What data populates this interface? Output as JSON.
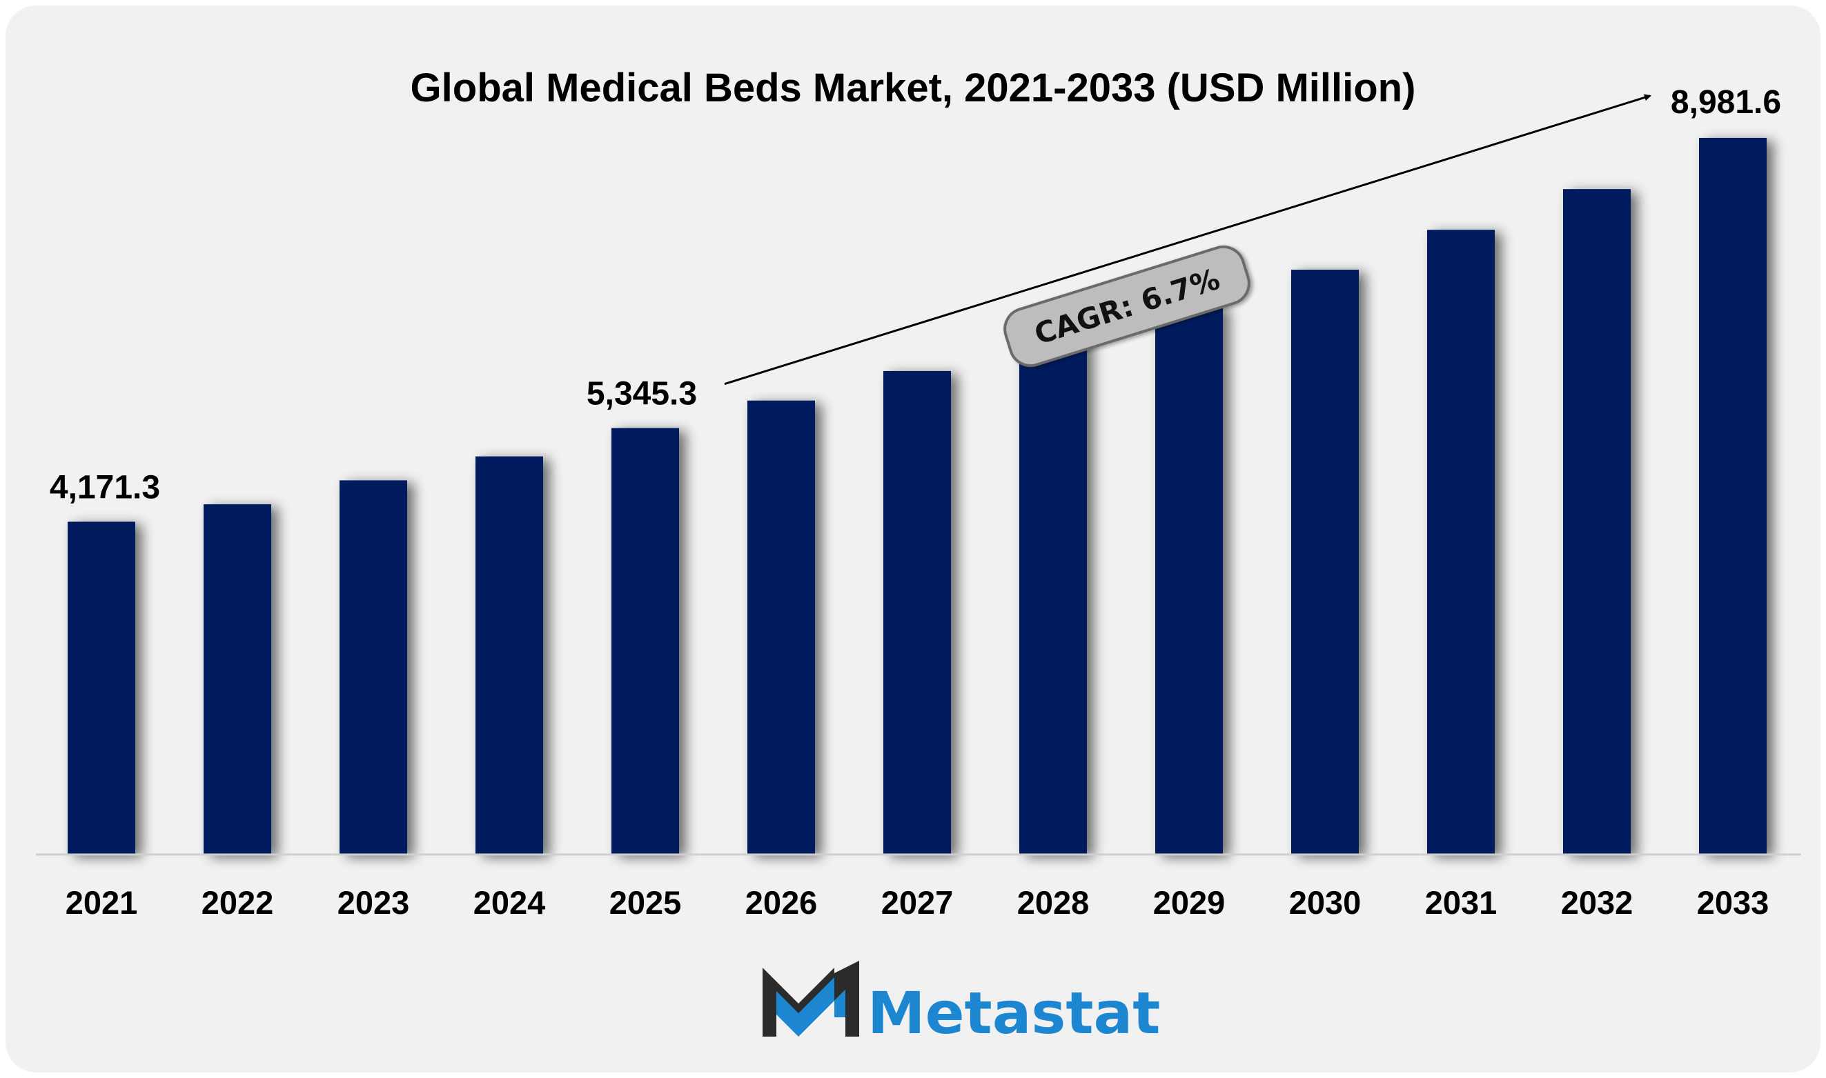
{
  "chart_data": {
    "type": "bar",
    "title": "Global Medical Beds Market, 2021-2033 (USD Million)",
    "categories": [
      "2021",
      "2022",
      "2023",
      "2024",
      "2025",
      "2026",
      "2027",
      "2028",
      "2029",
      "2030",
      "2031",
      "2032",
      "2033"
    ],
    "series": [
      {
        "values": [
          4171.3,
          4390,
          4690,
          4990,
          5345.3,
          5690,
          6060,
          6440,
          6880,
          7330,
          7830,
          8340,
          8981.6
        ]
      }
    ],
    "data_labels": [
      {
        "category": "2021",
        "text": "4,171.3"
      },
      {
        "category": "2025",
        "text": "5,345.3"
      },
      {
        "category": "2033",
        "text": "8,981.6"
      }
    ],
    "annotation": {
      "text": "CAGR: 6.7%",
      "from": "2025",
      "to": "2033"
    },
    "ylim": [
      0,
      9500
    ],
    "bar_color": "#021f5e",
    "grid": false,
    "legend": "none"
  },
  "brand": {
    "name": "Metastat",
    "colors": {
      "dark": "#2b2b2b",
      "blue": "#1d86d0"
    }
  }
}
